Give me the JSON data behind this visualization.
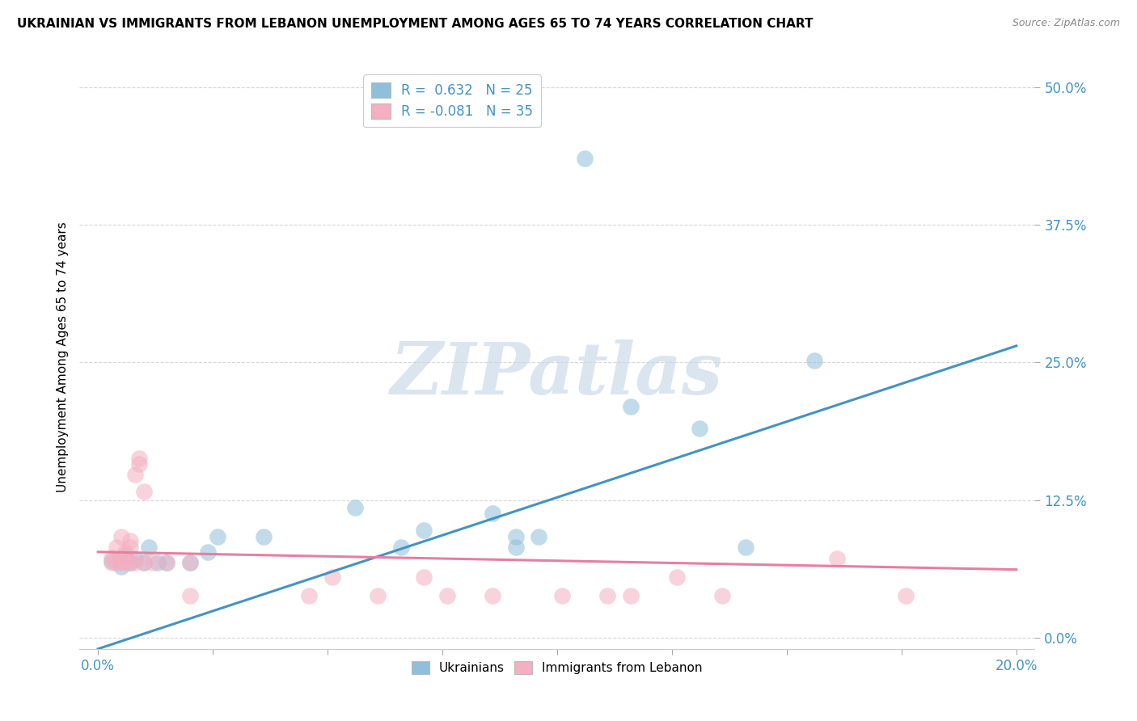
{
  "title": "UKRAINIAN VS IMMIGRANTS FROM LEBANON UNEMPLOYMENT AMONG AGES 65 TO 74 YEARS CORRELATION CHART",
  "source": "Source: ZipAtlas.com",
  "ylabel": "Unemployment Among Ages 65 to 74 years",
  "watermark": "ZIPatlas",
  "blue_color": "#8fbfda",
  "pink_color": "#f4afc0",
  "blue_line_color": "#4393c3",
  "pink_line_color": "#e87ea0",
  "blue_scatter": [
    [
      0.003,
      0.07
    ],
    [
      0.005,
      0.065
    ],
    [
      0.006,
      0.075
    ],
    [
      0.007,
      0.068
    ],
    [
      0.008,
      0.072
    ],
    [
      0.01,
      0.068
    ],
    [
      0.011,
      0.082
    ],
    [
      0.013,
      0.068
    ],
    [
      0.015,
      0.068
    ],
    [
      0.02,
      0.068
    ],
    [
      0.024,
      0.078
    ],
    [
      0.026,
      0.092
    ],
    [
      0.036,
      0.092
    ],
    [
      0.056,
      0.118
    ],
    [
      0.066,
      0.082
    ],
    [
      0.071,
      0.098
    ],
    [
      0.086,
      0.113
    ],
    [
      0.091,
      0.082
    ],
    [
      0.091,
      0.092
    ],
    [
      0.096,
      0.092
    ],
    [
      0.116,
      0.21
    ],
    [
      0.131,
      0.19
    ],
    [
      0.141,
      0.082
    ],
    [
      0.156,
      0.252
    ],
    [
      0.106,
      0.435
    ]
  ],
  "pink_scatter": [
    [
      0.003,
      0.068
    ],
    [
      0.003,
      0.073
    ],
    [
      0.004,
      0.068
    ],
    [
      0.004,
      0.082
    ],
    [
      0.005,
      0.068
    ],
    [
      0.005,
      0.073
    ],
    [
      0.005,
      0.092
    ],
    [
      0.006,
      0.068
    ],
    [
      0.006,
      0.078
    ],
    [
      0.007,
      0.068
    ],
    [
      0.007,
      0.082
    ],
    [
      0.007,
      0.088
    ],
    [
      0.008,
      0.068
    ],
    [
      0.008,
      0.148
    ],
    [
      0.009,
      0.158
    ],
    [
      0.009,
      0.163
    ],
    [
      0.01,
      0.068
    ],
    [
      0.01,
      0.133
    ],
    [
      0.012,
      0.068
    ],
    [
      0.015,
      0.068
    ],
    [
      0.02,
      0.068
    ],
    [
      0.02,
      0.038
    ],
    [
      0.046,
      0.038
    ],
    [
      0.051,
      0.055
    ],
    [
      0.061,
      0.038
    ],
    [
      0.071,
      0.055
    ],
    [
      0.076,
      0.038
    ],
    [
      0.086,
      0.038
    ],
    [
      0.101,
      0.038
    ],
    [
      0.111,
      0.038
    ],
    [
      0.116,
      0.038
    ],
    [
      0.126,
      0.055
    ],
    [
      0.136,
      0.038
    ],
    [
      0.161,
      0.072
    ],
    [
      0.176,
      0.038
    ]
  ],
  "xlim": [
    -0.004,
    0.204
  ],
  "ylim": [
    -0.01,
    0.52
  ],
  "blue_trend_x": [
    0.0,
    0.2
  ],
  "blue_trend_y": [
    -0.01,
    0.265
  ],
  "pink_trend_x": [
    0.0,
    0.2
  ],
  "pink_trend_y": [
    0.078,
    0.062
  ],
  "figsize": [
    14.06,
    8.92
  ],
  "dpi": 100,
  "ytick_vals": [
    0.0,
    0.125,
    0.25,
    0.375,
    0.5
  ],
  "ytick_labels": [
    "0.0%",
    "12.5%",
    "25.0%",
    "37.5%",
    "50.0%"
  ],
  "xtick_minor": [
    0.025,
    0.05,
    0.075,
    0.1,
    0.125,
    0.15,
    0.175
  ],
  "xtick_edge_labels": {
    "0.0": "0.0%",
    "0.2": "20.0%"
  }
}
